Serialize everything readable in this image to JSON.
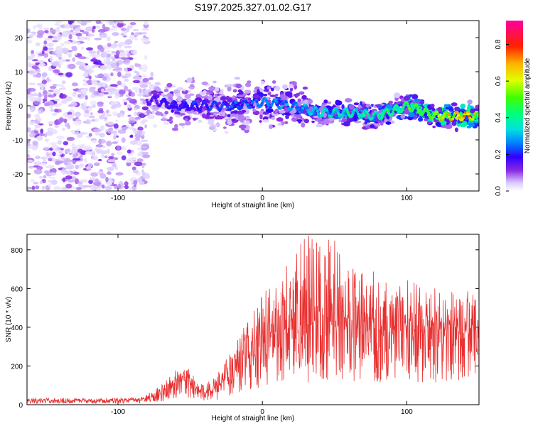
{
  "title": "S197.2025.327.01.02.G17",
  "chart_data": [
    {
      "type": "heatmap",
      "name": "spectrogram",
      "xlabel": "Height of straight line (km)",
      "ylabel": "Frequency (Hz)",
      "xlim": [
        -163,
        150
      ],
      "ylim": [
        -25,
        25
      ],
      "xticks": [
        -100,
        0,
        100
      ],
      "xtick_labels": [
        "-100",
        "0",
        "100"
      ],
      "yticks": [
        -20,
        -10,
        0,
        10,
        20
      ],
      "ytick_labels": [
        "-20",
        "-10",
        "0",
        "10",
        "20"
      ],
      "colorbar": {
        "label": "Normalized spectral amplitude",
        "range": [
          0,
          0.93
        ],
        "ticks": [
          0.0,
          0.2,
          0.4,
          0.6,
          0.8
        ],
        "tick_labels": [
          "0.0",
          "0.2",
          "0.4",
          "0.6",
          "0.8"
        ]
      },
      "ridge": {
        "x": [
          -80,
          -60,
          -40,
          -20,
          0,
          20,
          40,
          60,
          80,
          100,
          120,
          140,
          150
        ],
        "frequency": [
          2,
          0,
          0,
          0,
          1,
          0,
          -2,
          -2,
          -3,
          0,
          -3,
          -3,
          -3
        ],
        "amplitude": [
          0.15,
          0.2,
          0.2,
          0.22,
          0.25,
          0.28,
          0.32,
          0.38,
          0.4,
          0.45,
          0.62,
          0.7,
          0.6
        ]
      },
      "noise_region": {
        "x_from": -163,
        "x_to": -80
      }
    },
    {
      "type": "line",
      "name": "snr",
      "xlabel": "Height of straight line (km)",
      "ylabel": "SNR (10 * v/v)",
      "xlim": [
        -163,
        150
      ],
      "ylim": [
        0,
        880
      ],
      "xticks": [
        -100,
        0,
        100
      ],
      "xtick_labels": [
        "-100",
        "0",
        "100"
      ],
      "yticks": [
        0,
        200,
        400,
        600,
        800
      ],
      "ytick_labels": [
        "0",
        "200",
        "400",
        "600",
        "800"
      ],
      "color": "#e83030",
      "envelope": {
        "x": [
          -163,
          -120,
          -85,
          -70,
          -60,
          -55,
          -50,
          -45,
          -40,
          -30,
          -20,
          -10,
          0,
          10,
          20,
          30,
          40,
          50,
          60,
          80,
          100,
          120,
          140,
          150
        ],
        "mean": [
          20,
          20,
          22,
          55,
          110,
          130,
          110,
          70,
          50,
          90,
          170,
          230,
          280,
          330,
          360,
          380,
          390,
          400,
          380,
          380,
          370,
          370,
          380,
          380
        ],
        "peak": [
          35,
          35,
          40,
          100,
          180,
          200,
          190,
          120,
          100,
          180,
          320,
          430,
          580,
          700,
          780,
          880,
          870,
          860,
          730,
          690,
          650,
          610,
          600,
          560
        ]
      }
    }
  ]
}
